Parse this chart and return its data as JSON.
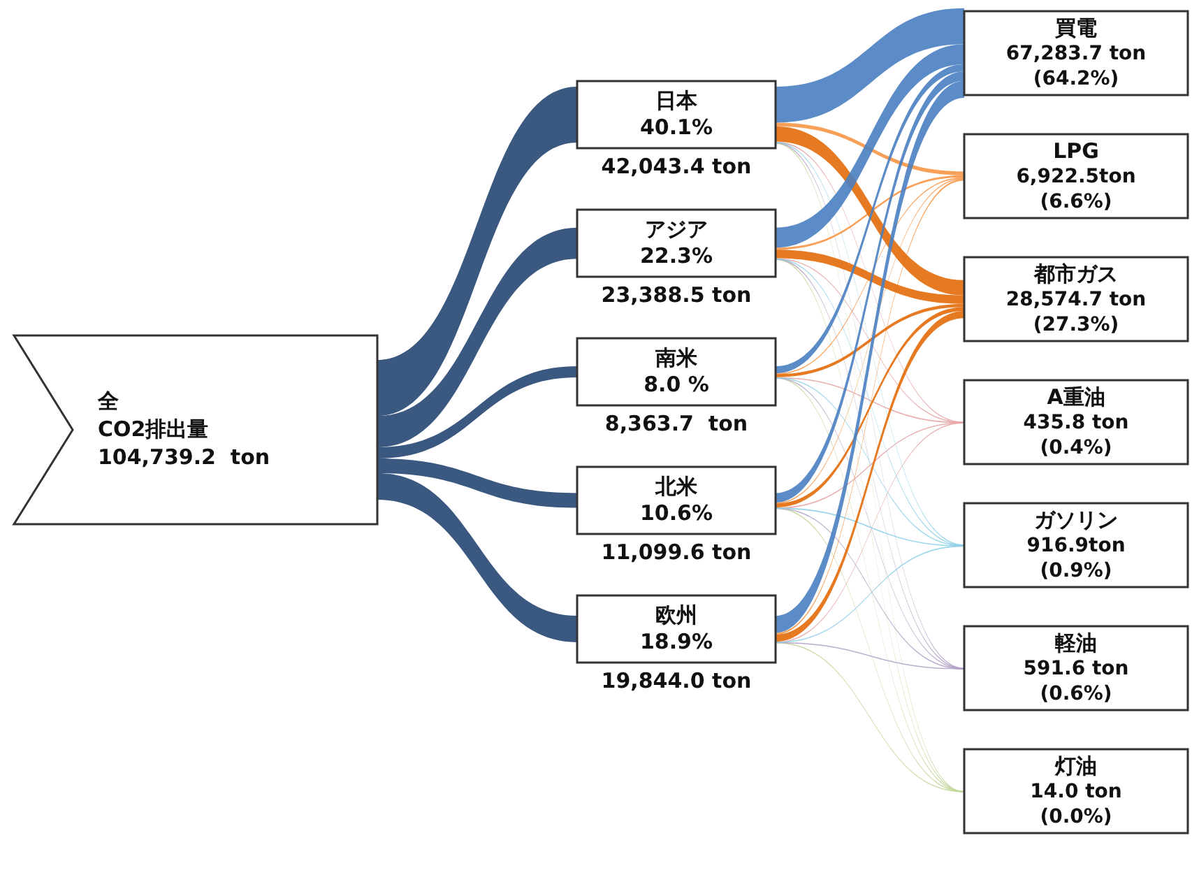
{
  "chart_data": {
    "type": "other",
    "categories": [
      "全\nCO2排出量",
      "日本",
      "アジア",
      "南米",
      "北米",
      "欧州",
      "買電",
      "LPG",
      "都市ガス",
      "A重油",
      "ガソリン",
      "軽油",
      "灯油"
    ],
    "colors": [
      "#ffffff",
      "#254672",
      "#254672",
      "#254672",
      "#254672",
      "#254672",
      "#4a7fc1",
      "#f79646",
      "#e36c0a",
      "#e6a5a5",
      "#8fd0e8",
      "#b3a2c7",
      "#c3d69b"
    ],
    "series": [
      {
        "values": [
          104739.2,
          42043.4,
          23388.5,
          8363.7,
          11099.6,
          19844.0,
          67283.7,
          6922.5,
          28574.7,
          435.8,
          916.9,
          591.6,
          14.0
        ],
        "value_labels": [
          "104,739.2  ton",
          "42,043.4 ton",
          "23,388.5 ton",
          "8,363.7  ton",
          "11,099.6 ton",
          "19,844.0 ton",
          "67,283.7 ton",
          "6,922.5ton",
          "28,574.7 ton",
          "435.8 ton",
          "916.9ton",
          "591.6 ton",
          "14.0 ton"
        ]
      },
      {
        "values": [
          null,
          40.1,
          22.3,
          8.0,
          10.6,
          18.9,
          64.2,
          6.6,
          27.3,
          0.4,
          0.9,
          0.6,
          0.0
        ],
        "value_labels": [
          null,
          "40.1%",
          "22.3%",
          "8.0 %",
          "10.6%",
          "18.9%",
          "(64.2%)",
          "(6.6%)",
          "(27.3%)",
          "(0.4%)",
          "(0.9%)",
          "(0.6%)",
          "(0.0%)"
        ]
      }
    ]
  }
}
